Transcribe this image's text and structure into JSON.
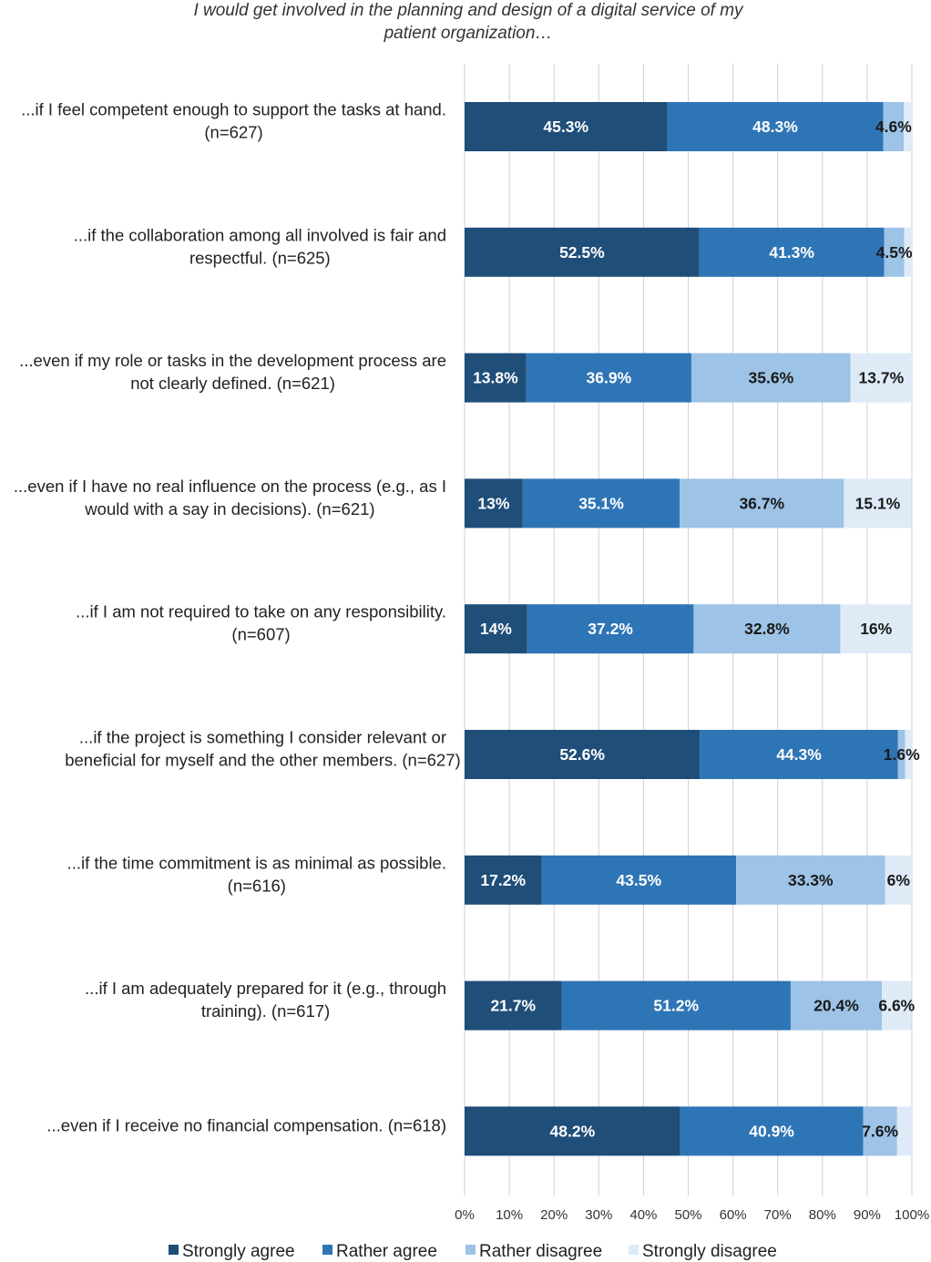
{
  "chart_data": {
    "type": "bar",
    "orientation": "horizontal",
    "stacked": true,
    "title": "I would get involved in the planning and design of a digital service of my patient organization…",
    "title_lines": [
      "I would get involved in the planning and design of a digital service of my",
      "patient organization…"
    ],
    "categories": [
      [
        "...if I feel competent enough to support the tasks at hand.",
        "(n=627)"
      ],
      [
        "...if the collaboration among all involved is fair and",
        "respectful. (n=625)"
      ],
      [
        "...even if my role or tasks in the development process are",
        "not clearly defined. (n=621)"
      ],
      [
        "...even if I have no real influence on the process (e.g., as I",
        "would with a say in decisions). (n=621)"
      ],
      [
        "...if I am not required to take on any responsibility.",
        "(n=607)"
      ],
      [
        "...if the project is something I consider relevant or",
        "beneficial for myself and the other members. (n=627)"
      ],
      [
        "...if the time commitment is as minimal as possible.",
        "(n=616)"
      ],
      [
        "...if I am adequately prepared for it (e.g., through",
        "training). (n=617)"
      ],
      [
        "...even if I receive no financial compensation. (n=618)"
      ]
    ],
    "series": [
      {
        "name": "Strongly agree",
        "color": "#1f4e79",
        "values": [
          45.3,
          52.5,
          13.8,
          13,
          14,
          52.6,
          17.2,
          21.7,
          48.2
        ],
        "labels": [
          "45.3%",
          "52.5%",
          "13.8%",
          "13%",
          "14%",
          "52.6%",
          "17.2%",
          "21.7%",
          "48.2%"
        ]
      },
      {
        "name": "Rather agree",
        "color": "#2e75b6",
        "values": [
          48.3,
          41.3,
          36.9,
          35.1,
          37.2,
          44.3,
          43.5,
          51.2,
          40.9
        ],
        "labels": [
          "48.3%",
          "41.3%",
          "36.9%",
          "35.1%",
          "37.2%",
          "44.3%",
          "43.5%",
          "51.2%",
          "40.9%"
        ]
      },
      {
        "name": "Rather disagree",
        "color": "#9dc3e6",
        "values": [
          4.6,
          4.5,
          35.6,
          36.7,
          32.8,
          1.6,
          33.3,
          20.4,
          7.6
        ],
        "labels": [
          "4.6%",
          "4.5%",
          "35.6%",
          "36.7%",
          "32.8%",
          "1.6%",
          "33.3%",
          "20.4%",
          "7.6%"
        ]
      },
      {
        "name": "Strongly disagree",
        "color": "#deebf7",
        "values": [
          1.8,
          1.7,
          13.7,
          15.1,
          16,
          1.5,
          6,
          6.6,
          3.3
        ],
        "labels": [
          "",
          "",
          "13.7%",
          "15.1%",
          "16%",
          "",
          "6%",
          "6.6%",
          ""
        ]
      }
    ],
    "xlim": [
      0,
      100
    ],
    "xticks": [
      "0%",
      "10%",
      "20%",
      "30%",
      "40%",
      "50%",
      "60%",
      "70%",
      "80%",
      "90%",
      "100%"
    ],
    "grid": true,
    "legend_position": "bottom"
  }
}
